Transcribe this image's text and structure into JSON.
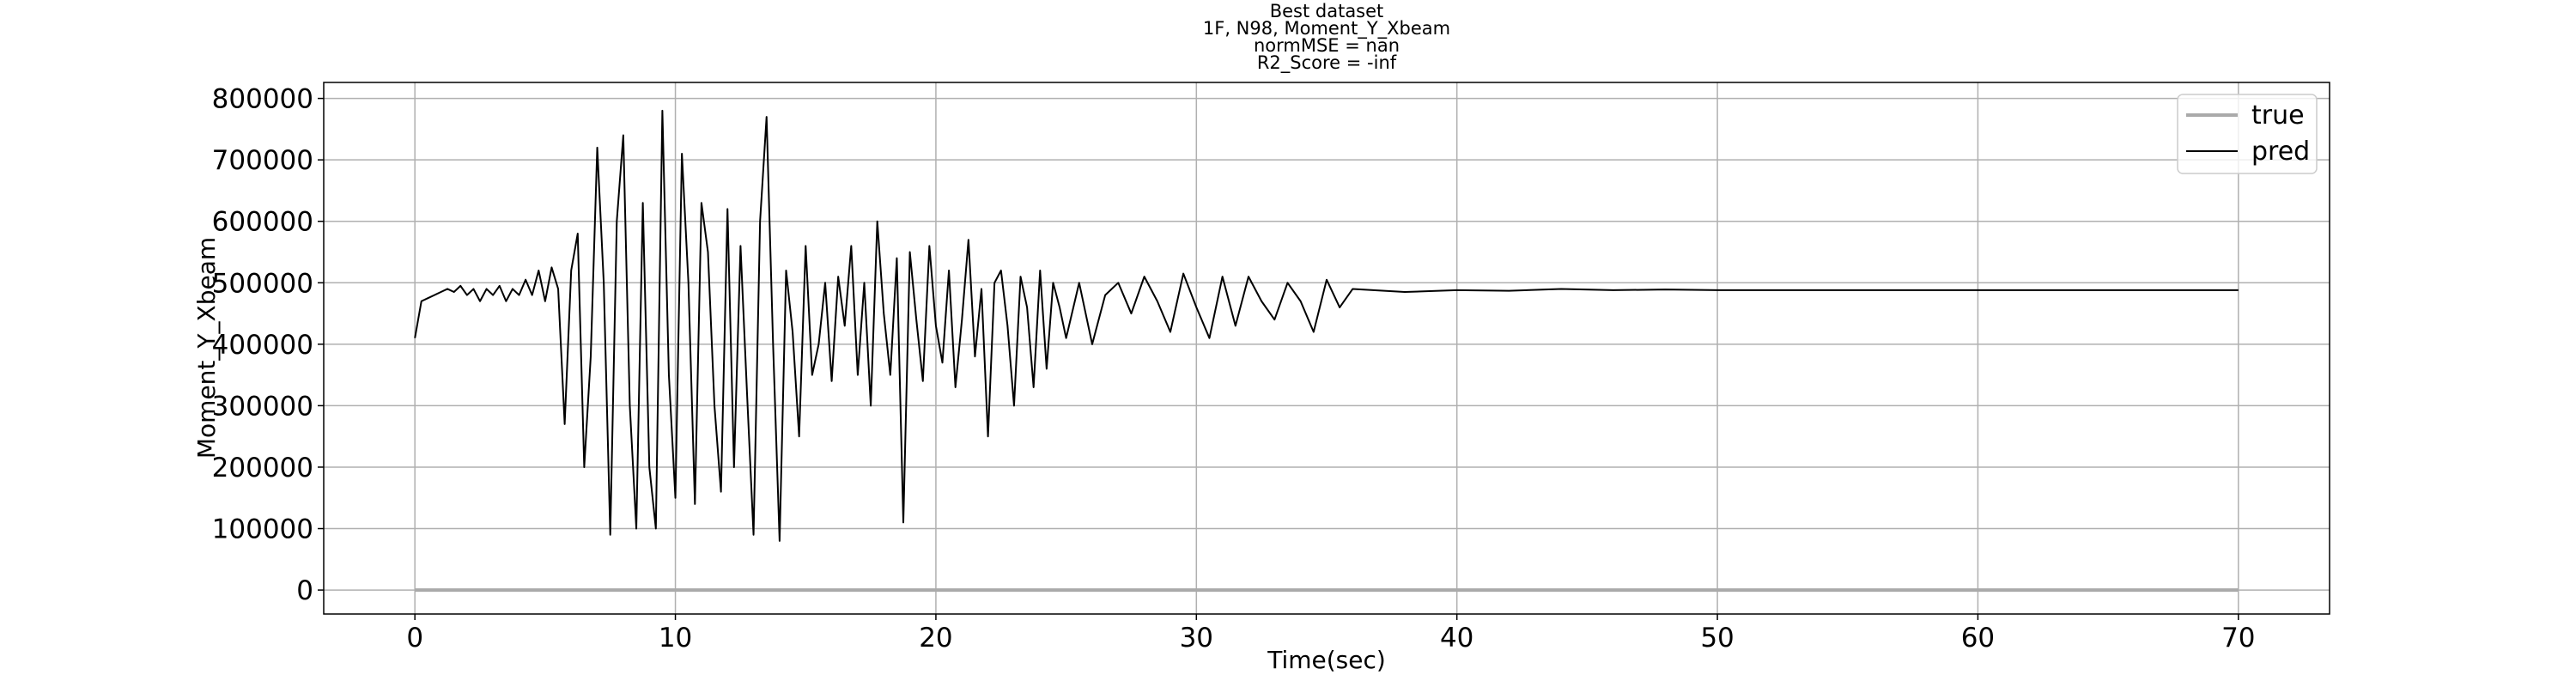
{
  "chart_data": {
    "type": "line",
    "title": [
      "Best dataset",
      "1F, N98, Moment_Y_Xbeam",
      "normMSE = nan",
      "R2_Score = -inf"
    ],
    "xlabel": "Time(sec)",
    "ylabel": "Moment_Y_Xbeam",
    "xlim": [
      -3.5,
      73.5
    ],
    "ylim": [
      -39000,
      826000
    ],
    "xticks": [
      0,
      10,
      20,
      30,
      40,
      50,
      60,
      70
    ],
    "yticks": [
      0,
      100000,
      200000,
      300000,
      400000,
      500000,
      600000,
      700000,
      800000
    ],
    "grid": true,
    "legend": "upper right",
    "x": [
      0,
      0.25,
      0.5,
      0.75,
      1,
      1.25,
      1.5,
      1.75,
      2,
      2.25,
      2.5,
      2.75,
      3,
      3.25,
      3.5,
      3.75,
      4,
      4.25,
      4.5,
      4.75,
      5,
      5.25,
      5.5,
      5.75,
      6,
      6.25,
      6.5,
      6.75,
      7,
      7.25,
      7.5,
      7.75,
      8,
      8.25,
      8.5,
      8.75,
      9,
      9.25,
      9.5,
      9.75,
      10,
      10.25,
      10.5,
      10.75,
      11,
      11.25,
      11.5,
      11.75,
      12,
      12.25,
      12.5,
      12.75,
      13,
      13.25,
      13.5,
      13.75,
      14,
      14.25,
      14.5,
      14.75,
      15,
      15.25,
      15.5,
      15.75,
      16,
      16.25,
      16.5,
      16.75,
      17,
      17.25,
      17.5,
      17.75,
      18,
      18.25,
      18.5,
      18.75,
      19,
      19.25,
      19.5,
      19.75,
      20,
      20.25,
      20.5,
      20.75,
      21,
      21.25,
      21.5,
      21.75,
      22,
      22.25,
      22.5,
      22.75,
      23,
      23.25,
      23.5,
      23.75,
      24,
      24.25,
      24.5,
      24.75,
      25,
      25.5,
      26,
      26.5,
      27,
      27.5,
      28,
      28.5,
      29,
      29.5,
      30,
      30.5,
      31,
      31.5,
      32,
      32.5,
      33,
      33.5,
      34,
      34.5,
      35,
      35.5,
      36,
      38,
      40,
      42,
      44,
      46,
      48,
      50,
      52,
      54,
      56,
      58,
      60,
      62,
      64,
      66,
      68,
      70
    ],
    "series": [
      {
        "name": "true",
        "color": "#aaaaaa",
        "width": 4,
        "values": [
          0,
          0,
          0,
          0,
          0,
          0,
          0,
          0,
          0,
          0,
          0,
          0,
          0,
          0,
          0,
          0,
          0,
          0,
          0,
          0,
          0,
          0,
          0,
          0,
          0,
          0,
          0,
          0,
          0,
          0,
          0,
          0,
          0,
          0,
          0,
          0,
          0,
          0,
          0,
          0,
          0,
          0,
          0,
          0,
          0,
          0,
          0,
          0,
          0,
          0,
          0,
          0,
          0,
          0,
          0,
          0,
          0,
          0,
          0,
          0,
          0,
          0,
          0,
          0,
          0,
          0,
          0,
          0,
          0,
          0,
          0,
          0,
          0,
          0,
          0,
          0,
          0,
          0,
          0,
          0,
          0,
          0,
          0,
          0,
          0,
          0,
          0,
          0,
          0,
          0,
          0,
          0,
          0,
          0,
          0,
          0,
          0,
          0,
          0,
          0,
          0,
          0,
          0,
          0,
          0,
          0,
          0,
          0,
          0,
          0,
          0,
          0,
          0,
          0,
          0,
          0,
          0,
          0,
          0,
          0,
          0,
          0,
          0,
          0,
          0,
          0,
          0,
          0,
          0,
          0,
          0,
          0,
          0,
          0,
          0,
          0,
          0,
          0,
          0,
          0
        ]
      },
      {
        "name": "pred",
        "color": "#000000",
        "width": 2,
        "values": [
          410000,
          470000,
          475000,
          480000,
          485000,
          490000,
          485000,
          495000,
          480000,
          490000,
          470000,
          490000,
          480000,
          495000,
          470000,
          490000,
          480000,
          505000,
          480000,
          520000,
          470000,
          525000,
          490000,
          270000,
          520000,
          580000,
          200000,
          380000,
          720000,
          500000,
          90000,
          600000,
          740000,
          300000,
          100000,
          630000,
          200000,
          100000,
          780000,
          350000,
          150000,
          710000,
          500000,
          140000,
          630000,
          550000,
          300000,
          160000,
          620000,
          200000,
          560000,
          320000,
          90000,
          600000,
          770000,
          400000,
          80000,
          520000,
          420000,
          250000,
          560000,
          350000,
          400000,
          500000,
          340000,
          510000,
          430000,
          560000,
          350000,
          500000,
          300000,
          600000,
          450000,
          350000,
          540000,
          110000,
          550000,
          440000,
          340000,
          560000,
          430000,
          370000,
          520000,
          330000,
          440000,
          570000,
          380000,
          490000,
          250000,
          500000,
          520000,
          430000,
          300000,
          510000,
          460000,
          330000,
          520000,
          360000,
          500000,
          460000,
          410000,
          500000,
          400000,
          480000,
          500000,
          450000,
          510000,
          470000,
          420000,
          515000,
          460000,
          410000,
          510000,
          430000,
          510000,
          470000,
          440000,
          500000,
          470000,
          420000,
          505000,
          460000,
          490000,
          485000,
          488000,
          487000,
          490000,
          488000,
          489000,
          488000,
          488000,
          488000,
          488000,
          488000,
          488000,
          488000,
          488000,
          488000,
          488000,
          488000
        ]
      }
    ]
  }
}
